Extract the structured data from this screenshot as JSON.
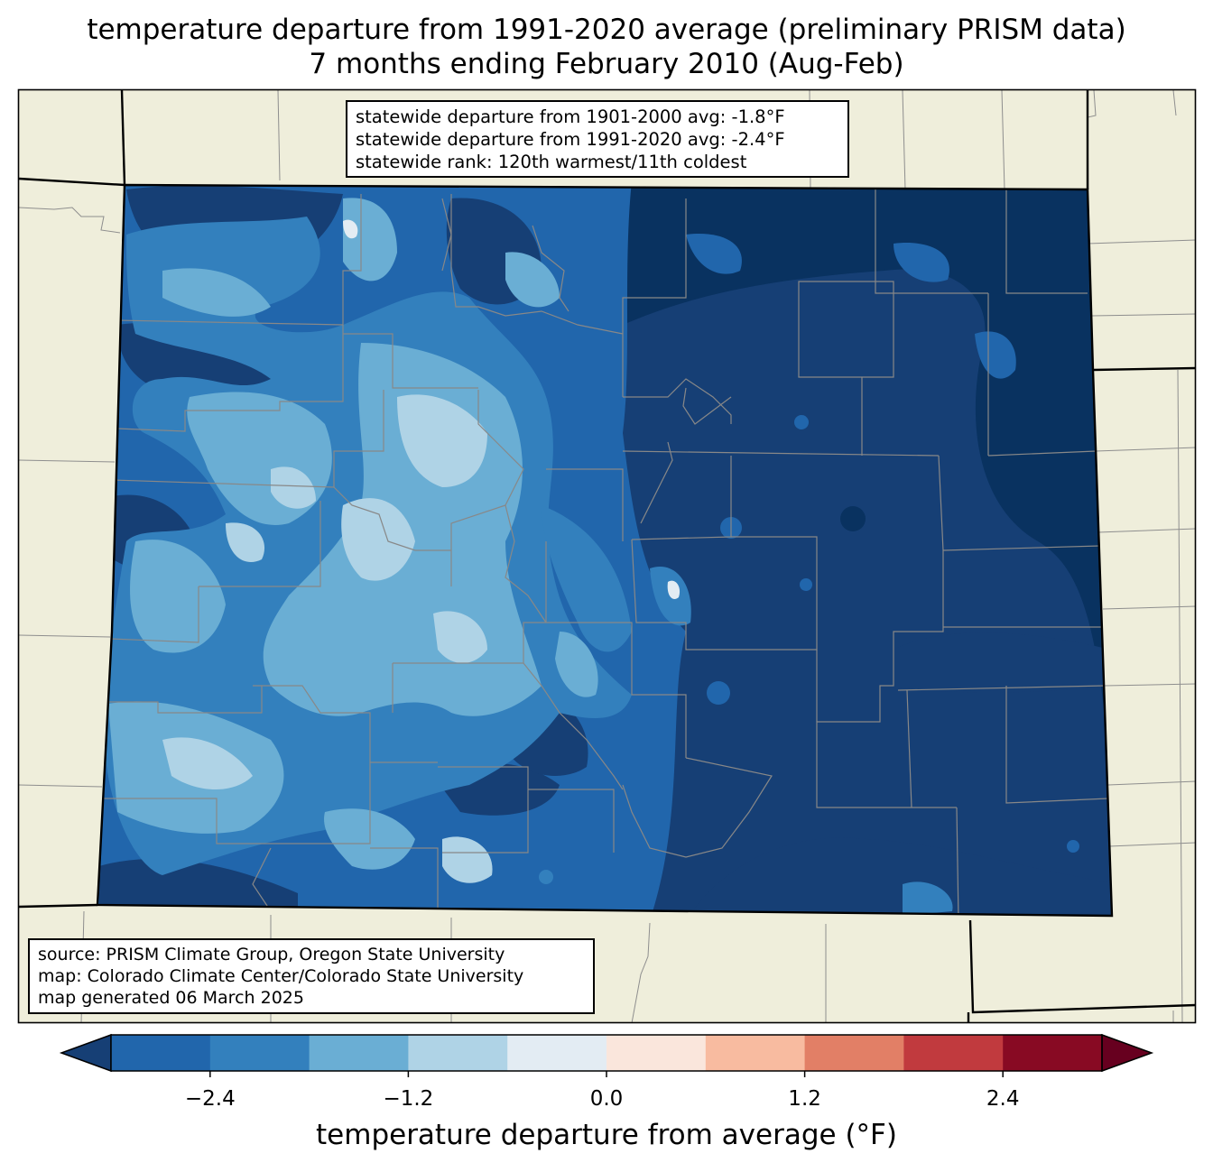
{
  "title": {
    "line1": "temperature departure from 1991-2020 average (preliminary PRISM data)",
    "line2": "7 months ending February 2010 (Aug-Feb)"
  },
  "stats": {
    "line1": "statewide departure from 1901-2000 avg: -1.8°F",
    "line2": "statewide departure from 1991-2020 avg: -2.4°F",
    "line3": "statewide rank: 120th warmest/11th coldest"
  },
  "source": {
    "line1": "source: PRISM Climate Group, Oregon State University",
    "line2": "map: Colorado Climate Center/Colorado State University",
    "line3": "map generated 06 March 2025"
  },
  "colorbar": {
    "label": "temperature departure from average (°F)",
    "ticks": [
      "−2.4",
      "−1.2",
      "0.0",
      "1.2",
      "2.4"
    ],
    "tick_values": [
      -2.4,
      -1.2,
      0.0,
      1.2,
      2.4
    ],
    "bin_edges": [
      -3.0,
      -2.4,
      -1.8,
      -1.2,
      -0.6,
      0.0,
      0.6,
      1.2,
      1.8,
      2.4,
      3.0
    ],
    "colors": [
      "#163f75",
      "#2166ac",
      "#3380bd",
      "#6aaed4",
      "#afd3e6",
      "#e3ecf3",
      "#fae6dc",
      "#f8bba0",
      "#e27f66",
      "#c13a3e",
      "#880a23",
      "#67001f"
    ]
  },
  "map_colors": {
    "land": "#efeedb",
    "darkest_blue": "#093260"
  }
}
